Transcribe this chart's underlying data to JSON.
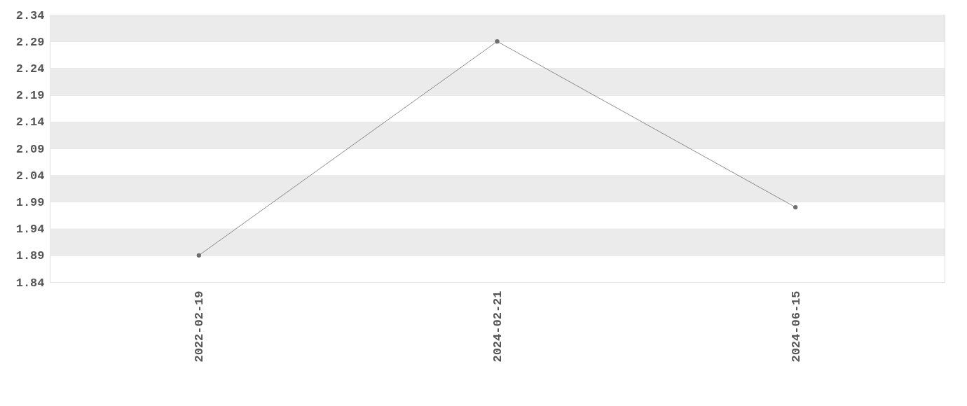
{
  "chart_data": {
    "type": "line",
    "categories": [
      "2022-02-19",
      "2024-02-21",
      "2024-06-15"
    ],
    "series": [
      {
        "color": "#6e6e6e",
        "values": [
          1.89,
          2.29,
          1.98
        ]
      }
    ],
    "ylim": [
      1.84,
      2.34
    ],
    "yticks": [
      1.84,
      1.89,
      1.94,
      1.99,
      2.04,
      2.09,
      2.14,
      2.19,
      2.24,
      2.29,
      2.34
    ],
    "grid": "y",
    "marker": "circle",
    "line_style": "solid"
  }
}
